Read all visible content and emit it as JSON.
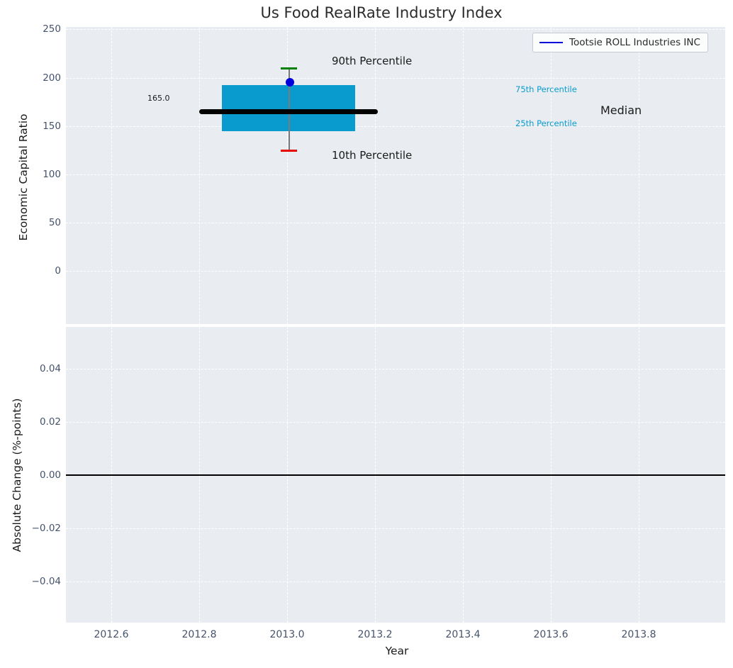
{
  "figure": {
    "title": "Us Food RealRate Industry Index"
  },
  "top_plot": {
    "ylabel": "Economic Capital Ratio",
    "yticks": [
      "250",
      "200",
      "150",
      "100",
      "50",
      "0"
    ],
    "legend_label": "Tootsie ROLL Industries INC",
    "annotations": {
      "p90_label": "90th Percentile",
      "p10_label": "10th Percentile",
      "p75_label": "75th Percentile",
      "p25_label": "25th Percentile",
      "median_label": "Median",
      "median_value": "165.0"
    }
  },
  "bottom_plot": {
    "ylabel": "Absolute Change (%-points)",
    "xlabel": "Year",
    "yticks": [
      "0.04",
      "0.02",
      "0.00",
      "−0.02",
      "−0.04"
    ],
    "xticks": [
      "2012.6",
      "2012.8",
      "2013.0",
      "2013.2",
      "2013.4",
      "2013.6",
      "2013.8"
    ]
  },
  "colors": {
    "axes_background": "#e9edf1",
    "grid": "#ffffff",
    "tick_label": "#44526b",
    "box_cyan": "#0a9bce",
    "median_black": "#000000",
    "cap_90_green": "#008000",
    "cap_10_red": "#e80000",
    "company_blue": "#0000dd",
    "whisker_gray": "#7a7a7a"
  },
  "chart_data": [
    {
      "type": "boxplot",
      "title": "Us Food RealRate Industry Index",
      "xlabel": "Year",
      "ylabel": "Economic Capital Ratio",
      "x_center": 2013.0,
      "xlim": [
        2012.5,
        2014.0
      ],
      "ylim": [
        -55,
        252
      ],
      "yticks": [
        0,
        50,
        100,
        150,
        200,
        250
      ],
      "grid": true,
      "legend_position": "upper right",
      "box": {
        "p10": 125,
        "p25": 145,
        "median": 165.0,
        "p75": 192,
        "p90": 210,
        "box_x_span": [
          2012.85,
          2013.15
        ],
        "median_x_span": [
          2012.8,
          2013.2
        ]
      },
      "series": [
        {
          "name": "Tootsie ROLL Industries INC",
          "type": "scatter",
          "x": [
            2013.0
          ],
          "values": [
            195
          ],
          "color": "#0000dd"
        }
      ],
      "annotations": [
        "90th Percentile",
        "10th Percentile",
        "75th Percentile",
        "25th Percentile",
        "Median",
        "165.0"
      ]
    },
    {
      "type": "line",
      "xlabel": "Year",
      "ylabel": "Absolute Change (%-points)",
      "xlim": [
        2012.5,
        2014.0
      ],
      "ylim": [
        -0.055,
        0.056
      ],
      "xticks": [
        2012.6,
        2012.8,
        2013.0,
        2013.2,
        2013.4,
        2013.6,
        2013.8
      ],
      "yticks": [
        -0.04,
        -0.02,
        0.0,
        0.02,
        0.04
      ],
      "grid": true,
      "zero_line_y": 0.0,
      "series": []
    }
  ]
}
